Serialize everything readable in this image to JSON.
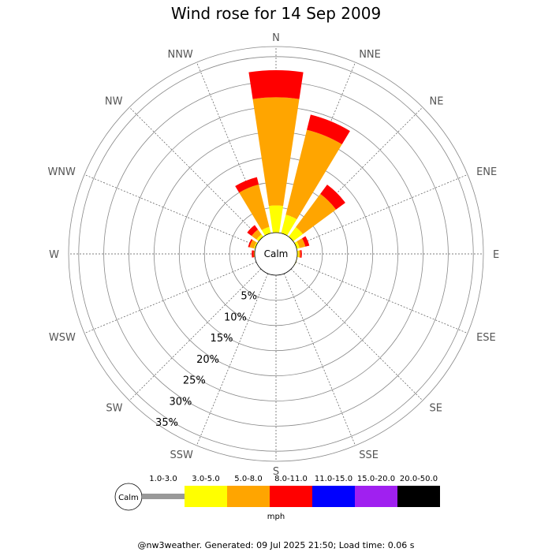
{
  "chart_data": {
    "type": "windrose",
    "title": "Wind rose for 14 Sep 2009",
    "directions": [
      "N",
      "NNE",
      "NE",
      "ENE",
      "E",
      "ESE",
      "SE",
      "SSE",
      "S",
      "SSW",
      "SW",
      "WSW",
      "W",
      "WNW",
      "NW",
      "NNW"
    ],
    "radial_ticks": [
      5,
      10,
      15,
      20,
      25,
      30,
      35
    ],
    "radial_tick_labels": [
      "5%",
      "10%",
      "15%",
      "20%",
      "25%",
      "30%",
      "35%"
    ],
    "radial_max": 37,
    "center_label": "Calm",
    "speed_bins": [
      {
        "label": "1.0-3.0",
        "color": "#999999"
      },
      {
        "label": "3.0-5.0",
        "color": "#ffff00"
      },
      {
        "label": "5.0-8.0",
        "color": "#ffa500"
      },
      {
        "label": "8.0-11.0",
        "color": "#ff0000"
      },
      {
        "label": "11.0-15.0",
        "color": "#0000ff"
      },
      {
        "label": "15.0-20.0",
        "color": "#a020f0"
      },
      {
        "label": "20.0-50.0",
        "color": "#000000"
      }
    ],
    "series": [
      {
        "name": "1.0-3.0",
        "values": [
          0,
          0,
          0,
          0,
          0,
          0,
          0,
          0,
          0,
          0,
          0,
          0,
          0,
          0,
          0,
          0
        ]
      },
      {
        "name": "3.0-5.0",
        "values": [
          5.4,
          3.8,
          2.4,
          0.6,
          0.3,
          0.1,
          0,
          0,
          0,
          0,
          0,
          0,
          0,
          0.3,
          0.6,
          1.3
        ]
      },
      {
        "name": "5.0-8.0",
        "values": [
          21.5,
          17.4,
          8.2,
          1.2,
          0.3,
          0,
          0,
          0,
          0,
          0,
          0,
          0,
          0.2,
          0.9,
          1.2,
          8.7
        ]
      },
      {
        "name": "8.0-11.0",
        "values": [
          5.4,
          3.1,
          2.3,
          0.8,
          0.3,
          0,
          0,
          0,
          0,
          0,
          0,
          0,
          0.4,
          0.3,
          1.1,
          1.5
        ]
      },
      {
        "name": "11.0-15.0",
        "values": [
          0,
          0,
          0,
          0,
          0,
          0,
          0,
          0,
          0,
          0,
          0,
          0,
          0,
          0,
          0,
          0
        ]
      },
      {
        "name": "15.0-20.0",
        "values": [
          0,
          0,
          0,
          0,
          0,
          0,
          0,
          0,
          0,
          0,
          0,
          0,
          0,
          0,
          0,
          0
        ]
      },
      {
        "name": "20.0-50.0",
        "values": [
          0,
          0,
          0,
          0,
          0,
          0,
          0,
          0,
          0,
          0,
          0,
          0,
          0,
          0,
          0,
          0
        ]
      }
    ],
    "legend": {
      "calm_label": "Calm",
      "unit": "mph",
      "placement": "bottom"
    },
    "grid": true
  },
  "footer": "@nw3weather. Generated: 09 Jul 2025 21:50; Load time: 0.06 s"
}
